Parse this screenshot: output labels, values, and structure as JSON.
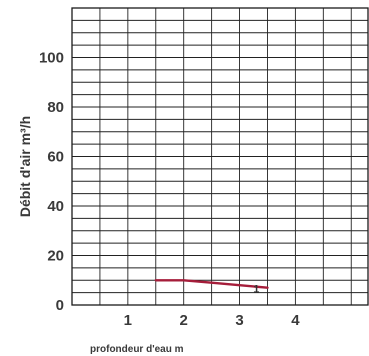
{
  "chart_data": {
    "type": "line",
    "xlabel": "profondeur d'eau m",
    "ylabel": "Débit d'air m³/h",
    "xlim": [
      0,
      5.3
    ],
    "ylim": [
      0,
      120
    ],
    "x_ticks": [
      1,
      2,
      3,
      4
    ],
    "y_ticks": [
      0,
      20,
      40,
      60,
      80,
      100
    ],
    "grid": true,
    "series": [
      {
        "color": "#a51d3a",
        "x": [
          1.5,
          2.0,
          2.5,
          3.0,
          3.5
        ],
        "y": [
          10,
          10,
          9,
          8,
          7
        ]
      }
    ],
    "annotations": [
      {
        "text": "1",
        "x": 3.3,
        "y": 5
      }
    ]
  }
}
